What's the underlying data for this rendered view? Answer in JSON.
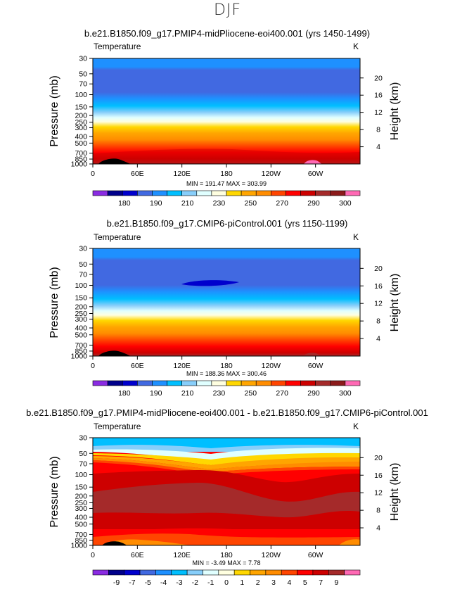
{
  "page": {
    "title": "DJF"
  },
  "chart_data": [
    {
      "type": "heatmap",
      "title": "b.e21.B1850.f09_g17.PMIP4-midPliocene-eoi400.001 (yrs 1450-1499)",
      "left_label": "Temperature",
      "right_label": "K",
      "ylabel": "Pressure  (mb)",
      "ylabel_right": "Height  (km)",
      "x_ticks": [
        "0",
        "60E",
        "120E",
        "180",
        "120W",
        "60W"
      ],
      "x_tick_values": [
        0,
        60,
        120,
        180,
        240,
        300
      ],
      "xlim": [
        0,
        360
      ],
      "y_ticks": [
        "30",
        "50",
        "70",
        "100",
        "150",
        "200",
        "250",
        "300",
        "400",
        "500",
        "700",
        "850",
        "1000"
      ],
      "y_tick_values": [
        30,
        50,
        70,
        100,
        150,
        200,
        250,
        300,
        400,
        500,
        700,
        850,
        1000
      ],
      "ylim": [
        1000,
        30
      ],
      "height_ticks": [
        "20",
        "16",
        "12",
        "8",
        "4"
      ],
      "height_tick_values": [
        20,
        16,
        12,
        8,
        4
      ],
      "stats": "MIN =  191.47   MAX =  303.99",
      "colorbar_labels": [
        "180",
        "190",
        "210",
        "230",
        "250",
        "270",
        "290",
        "300"
      ],
      "colorbar_colors": [
        "#8a2be2",
        "#00008b",
        "#0000cd",
        "#4169e1",
        "#1e90ff",
        "#00bfff",
        "#87cefa",
        "#e0ffff",
        "#ffffe0",
        "#ffd700",
        "#ffa500",
        "#ff8c00",
        "#ff4500",
        "#ff0000",
        "#cd0000",
        "#a52a2a",
        "#8b1a1a",
        "#ff69b4"
      ]
    },
    {
      "type": "heatmap",
      "title": "b.e21.B1850.f09_g17.CMIP6-piControl.001 (yrs 1150-1199)",
      "left_label": "Temperature",
      "right_label": "K",
      "ylabel": "Pressure  (mb)",
      "ylabel_right": "Height  (km)",
      "x_ticks": [
        "0",
        "60E",
        "120E",
        "180",
        "120W",
        "60W"
      ],
      "x_tick_values": [
        0,
        60,
        120,
        180,
        240,
        300
      ],
      "xlim": [
        0,
        360
      ],
      "y_ticks": [
        "30",
        "50",
        "70",
        "100",
        "150",
        "200",
        "250",
        "300",
        "400",
        "500",
        "700",
        "850",
        "1000"
      ],
      "y_tick_values": [
        30,
        50,
        70,
        100,
        150,
        200,
        250,
        300,
        400,
        500,
        700,
        850,
        1000
      ],
      "ylim": [
        1000,
        30
      ],
      "height_ticks": [
        "20",
        "16",
        "12",
        "8",
        "4"
      ],
      "height_tick_values": [
        20,
        16,
        12,
        8,
        4
      ],
      "stats": "MIN =  188.36   MAX =  300.46",
      "colorbar_labels": [
        "180",
        "190",
        "210",
        "230",
        "250",
        "270",
        "290",
        "300"
      ],
      "colorbar_colors": [
        "#8a2be2",
        "#00008b",
        "#0000cd",
        "#4169e1",
        "#1e90ff",
        "#00bfff",
        "#87cefa",
        "#e0ffff",
        "#ffffe0",
        "#ffd700",
        "#ffa500",
        "#ff8c00",
        "#ff4500",
        "#ff0000",
        "#cd0000",
        "#a52a2a",
        "#8b1a1a",
        "#ff69b4"
      ]
    },
    {
      "type": "heatmap",
      "title": "b.e21.B1850.f09_g17.PMIP4-midPliocene-eoi400.001 - b.e21.B1850.f09_g17.CMIP6-piControl.001",
      "left_label": "Temperature",
      "right_label": "K",
      "ylabel": "Pressure  (mb)",
      "ylabel_right": "Height  (km)",
      "x_ticks": [
        "0",
        "60E",
        "120E",
        "180",
        "120W",
        "60W"
      ],
      "x_tick_values": [
        0,
        60,
        120,
        180,
        240,
        300
      ],
      "xlim": [
        0,
        360
      ],
      "y_ticks": [
        "30",
        "50",
        "70",
        "100",
        "150",
        "200",
        "250",
        "300",
        "400",
        "500",
        "700",
        "850",
        "1000"
      ],
      "y_tick_values": [
        30,
        50,
        70,
        100,
        150,
        200,
        250,
        300,
        400,
        500,
        700,
        850,
        1000
      ],
      "ylim": [
        1000,
        30
      ],
      "height_ticks": [
        "20",
        "16",
        "12",
        "8",
        "4"
      ],
      "height_tick_values": [
        20,
        16,
        12,
        8,
        4
      ],
      "stats": "MIN =    -3.49   MAX =    7.78",
      "colorbar_labels": [
        "-9",
        "-7",
        "-5",
        "-4",
        "-3",
        "-2",
        "-1",
        "0",
        "1",
        "2",
        "3",
        "4",
        "5",
        "7",
        "9"
      ],
      "colorbar_colors": [
        "#8a2be2",
        "#00008b",
        "#0000cd",
        "#4169e1",
        "#1e90ff",
        "#00bfff",
        "#87cefa",
        "#e0ffff",
        "#ffffe0",
        "#ffd700",
        "#ffa500",
        "#ff8c00",
        "#ff4500",
        "#ff0000",
        "#cd0000",
        "#a52a2a",
        "#ff69b4"
      ]
    }
  ]
}
